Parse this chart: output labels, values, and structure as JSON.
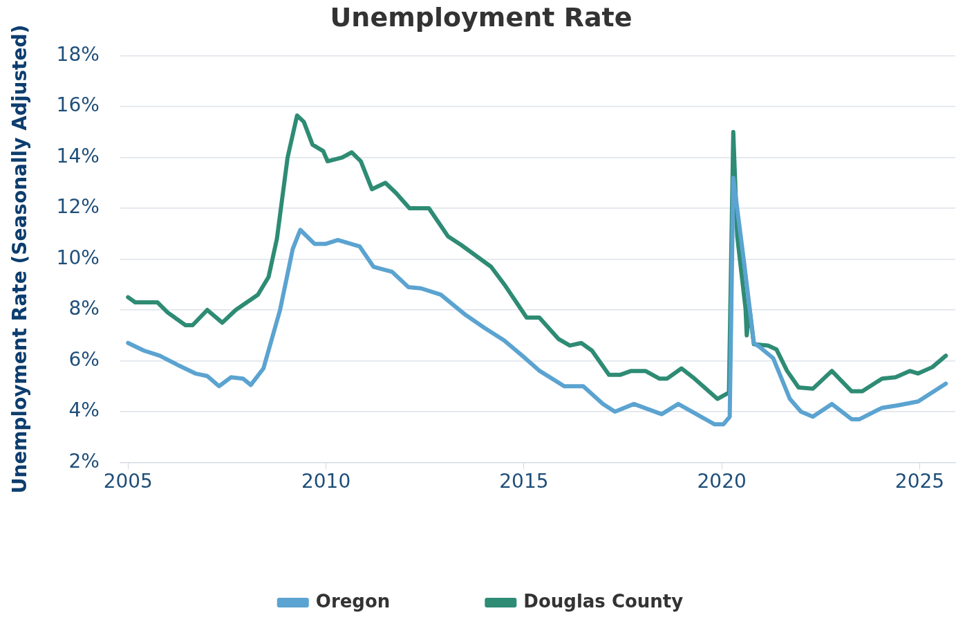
{
  "chart_data": {
    "type": "line",
    "title": "Unemployment Rate",
    "ylabel": "Unemployment Rate (Seasonally Adjusted)",
    "xlim": [
      2004.8,
      2025.9
    ],
    "xticks": [
      2005,
      2010,
      2015,
      2020,
      2025
    ],
    "ylim": [
      2,
      18
    ],
    "yticks": [
      {
        "value": 2,
        "label": "2%"
      },
      {
        "value": 4,
        "label": "4%"
      },
      {
        "value": 6,
        "label": "6%"
      },
      {
        "value": 8,
        "label": "8%"
      },
      {
        "value": 10,
        "label": "10%"
      },
      {
        "value": 12,
        "label": "12%"
      },
      {
        "value": 14,
        "label": "14%"
      },
      {
        "value": 16,
        "label": "16%"
      },
      {
        "value": 18,
        "label": "18%"
      }
    ],
    "grid": "y",
    "legend": "bottom",
    "marker": "none",
    "line_style": "solid",
    "series": [
      {
        "name": "Oregon",
        "color": "#5ba3d0",
        "x": [
          2005.0,
          2005.4,
          2005.8,
          2006.3,
          2006.7,
          2007.0,
          2007.3,
          2007.6,
          2007.9,
          2008.1,
          2008.42,
          2008.84,
          2009.16,
          2009.35,
          2009.71,
          2010.0,
          2010.3,
          2010.85,
          2011.2,
          2011.67,
          2012.08,
          2012.4,
          2012.9,
          2013.53,
          2014.0,
          2014.5,
          2014.96,
          2015.4,
          2016.02,
          2016.5,
          2017.0,
          2017.3,
          2017.78,
          2018.48,
          2018.9,
          2019.82,
          2020.04,
          2020.2,
          2020.29,
          2020.56,
          2020.81,
          2020.95,
          2021.3,
          2021.72,
          2022.0,
          2022.3,
          2022.78,
          2023.28,
          2023.48,
          2024.05,
          2024.46,
          2024.96,
          2025.66
        ],
        "values": [
          6.7,
          6.4,
          6.2,
          5.8,
          5.5,
          5.4,
          5.0,
          5.35,
          5.3,
          5.05,
          5.7,
          8.0,
          10.4,
          11.15,
          10.6,
          10.6,
          10.75,
          10.5,
          9.7,
          9.5,
          8.9,
          8.85,
          8.6,
          7.8,
          7.3,
          6.8,
          6.2,
          5.6,
          5.0,
          5.0,
          4.3,
          4.0,
          4.3,
          3.9,
          4.3,
          3.5,
          3.5,
          3.8,
          13.2,
          9.9,
          6.7,
          6.55,
          6.1,
          4.5,
          4.0,
          3.8,
          4.3,
          3.7,
          3.7,
          4.15,
          4.25,
          4.4,
          5.1
        ]
      },
      {
        "name": "Douglas County",
        "color": "#2e8b74",
        "x": [
          2005.0,
          2005.18,
          2005.74,
          2006.0,
          2006.45,
          2006.63,
          2007.0,
          2007.38,
          2007.72,
          2008.28,
          2008.55,
          2008.76,
          2009.03,
          2009.27,
          2009.44,
          2009.66,
          2009.93,
          2010.04,
          2010.41,
          2010.65,
          2010.88,
          2011.16,
          2011.5,
          2011.77,
          2012.11,
          2012.6,
          2013.08,
          2013.42,
          2014.17,
          2014.53,
          2015.07,
          2015.39,
          2015.88,
          2016.16,
          2016.45,
          2016.72,
          2017.15,
          2017.44,
          2017.71,
          2018.07,
          2018.42,
          2018.62,
          2018.98,
          2019.27,
          2019.89,
          2020.18,
          2020.29,
          2020.39,
          2020.6,
          2020.63,
          2020.7,
          2020.81,
          2021.17,
          2021.38,
          2021.65,
          2021.94,
          2022.3,
          2022.78,
          2023.28,
          2023.55,
          2024.05,
          2024.39,
          2024.75,
          2024.96,
          2025.32,
          2025.66
        ],
        "values": [
          8.5,
          8.3,
          8.3,
          7.9,
          7.4,
          7.4,
          8.0,
          7.5,
          8.0,
          8.6,
          9.3,
          10.8,
          14.0,
          15.65,
          15.4,
          14.5,
          14.25,
          13.85,
          14.0,
          14.2,
          13.85,
          12.75,
          13.0,
          12.6,
          12.0,
          12.0,
          10.9,
          10.55,
          9.7,
          8.95,
          7.7,
          7.7,
          6.85,
          6.6,
          6.7,
          6.4,
          5.45,
          5.45,
          5.6,
          5.6,
          5.3,
          5.3,
          5.7,
          5.35,
          4.5,
          4.75,
          15.0,
          10.9,
          8.05,
          7.0,
          8.05,
          6.65,
          6.6,
          6.45,
          5.6,
          4.95,
          4.9,
          5.6,
          4.8,
          4.8,
          5.3,
          5.35,
          5.6,
          5.5,
          5.75,
          6.2
        ]
      }
    ]
  }
}
